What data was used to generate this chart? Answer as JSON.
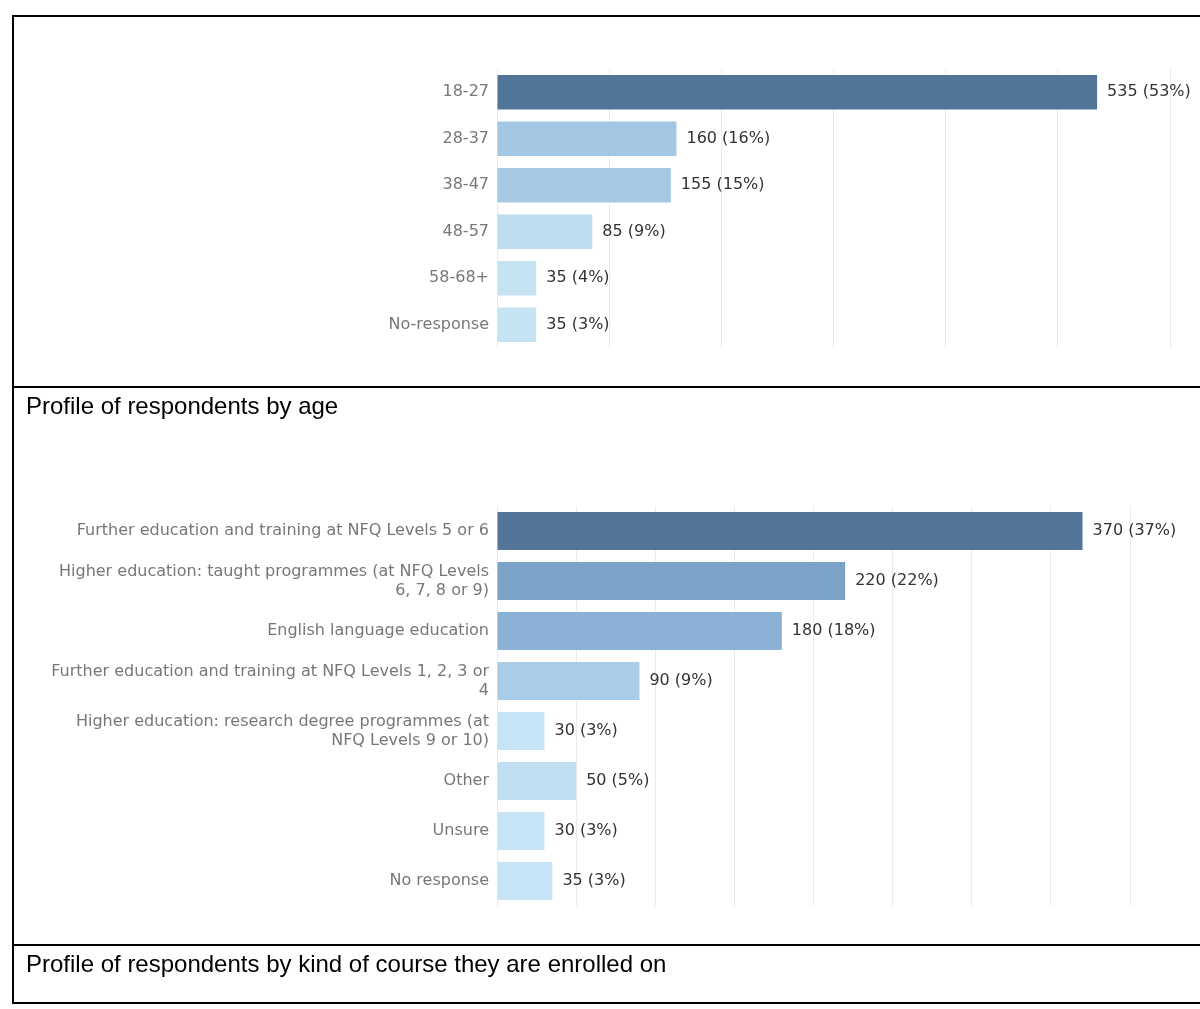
{
  "chart_data": [
    {
      "type": "bar",
      "orientation": "horizontal",
      "title": "Profile of respondents by age",
      "categories": [
        "18-27",
        "28-37",
        "38-47",
        "48-57",
        "58-68+",
        "No-response"
      ],
      "values": [
        535,
        160,
        155,
        85,
        35,
        35
      ],
      "value_labels": [
        "535 (53%)",
        "160 (16%)",
        "155 (15%)",
        "85 (9%)",
        "35 (4%)",
        "35 (3%)"
      ],
      "colors": [
        "#517599",
        "#a3c6e2",
        "#a6c8e3",
        "#bcdcef",
        "#c6e3f4",
        "#c6e3f4"
      ],
      "xticks": [
        {
          "value": 0,
          "label": null
        },
        {
          "value": 100,
          "label": null
        },
        {
          "value": 200,
          "label": null
        },
        {
          "value": 300,
          "label": null
        },
        {
          "value": 400,
          "label": null
        },
        {
          "value": 500,
          "label": null
        },
        {
          "value": 600,
          "label": null
        }
      ],
      "grid": "x",
      "tick_labels": "y"
    },
    {
      "type": "bar",
      "orientation": "horizontal",
      "title": "Profile of respondents by kind of course they are enrolled on",
      "categories": [
        "Further education and training at NFQ Levels 5 or 6",
        "Higher education: taught programmes (at NFQ Levels 6, 7, 8 or 9)",
        "English language education",
        "Further education and training at NFQ Levels 1, 2, 3 or 4",
        "Higher education: research degree programmes (at NFQ Levels 9 or 10)",
        "Other",
        "Unsure",
        "No response"
      ],
      "values": [
        370,
        220,
        180,
        90,
        30,
        50,
        30,
        35
      ],
      "value_labels": [
        "370 (37%)",
        "220 (22%)",
        "180 (18%)",
        "90 (9%)",
        "30 (3%)",
        "50 (5%)",
        "30 (3%)",
        "35 (3%)"
      ],
      "colors": [
        "#527599",
        "#7ba3c8",
        "#8bb1d6",
        "#a9cde8",
        "#c6e4f5",
        "#bfdef2",
        "#c6e4f5",
        "#c6e4f5"
      ],
      "xticks": [
        {
          "value": 0,
          "label": null
        },
        {
          "value": 50,
          "label": null
        },
        {
          "value": 100,
          "label": null
        },
        {
          "value": 150,
          "label": null
        },
        {
          "value": 200,
          "label": null
        },
        {
          "value": 250,
          "label": null
        },
        {
          "value": 300,
          "label": null
        },
        {
          "value": 350,
          "label": null
        },
        {
          "value": 400,
          "label": null
        }
      ],
      "grid": "x",
      "tick_labels": "y"
    }
  ]
}
